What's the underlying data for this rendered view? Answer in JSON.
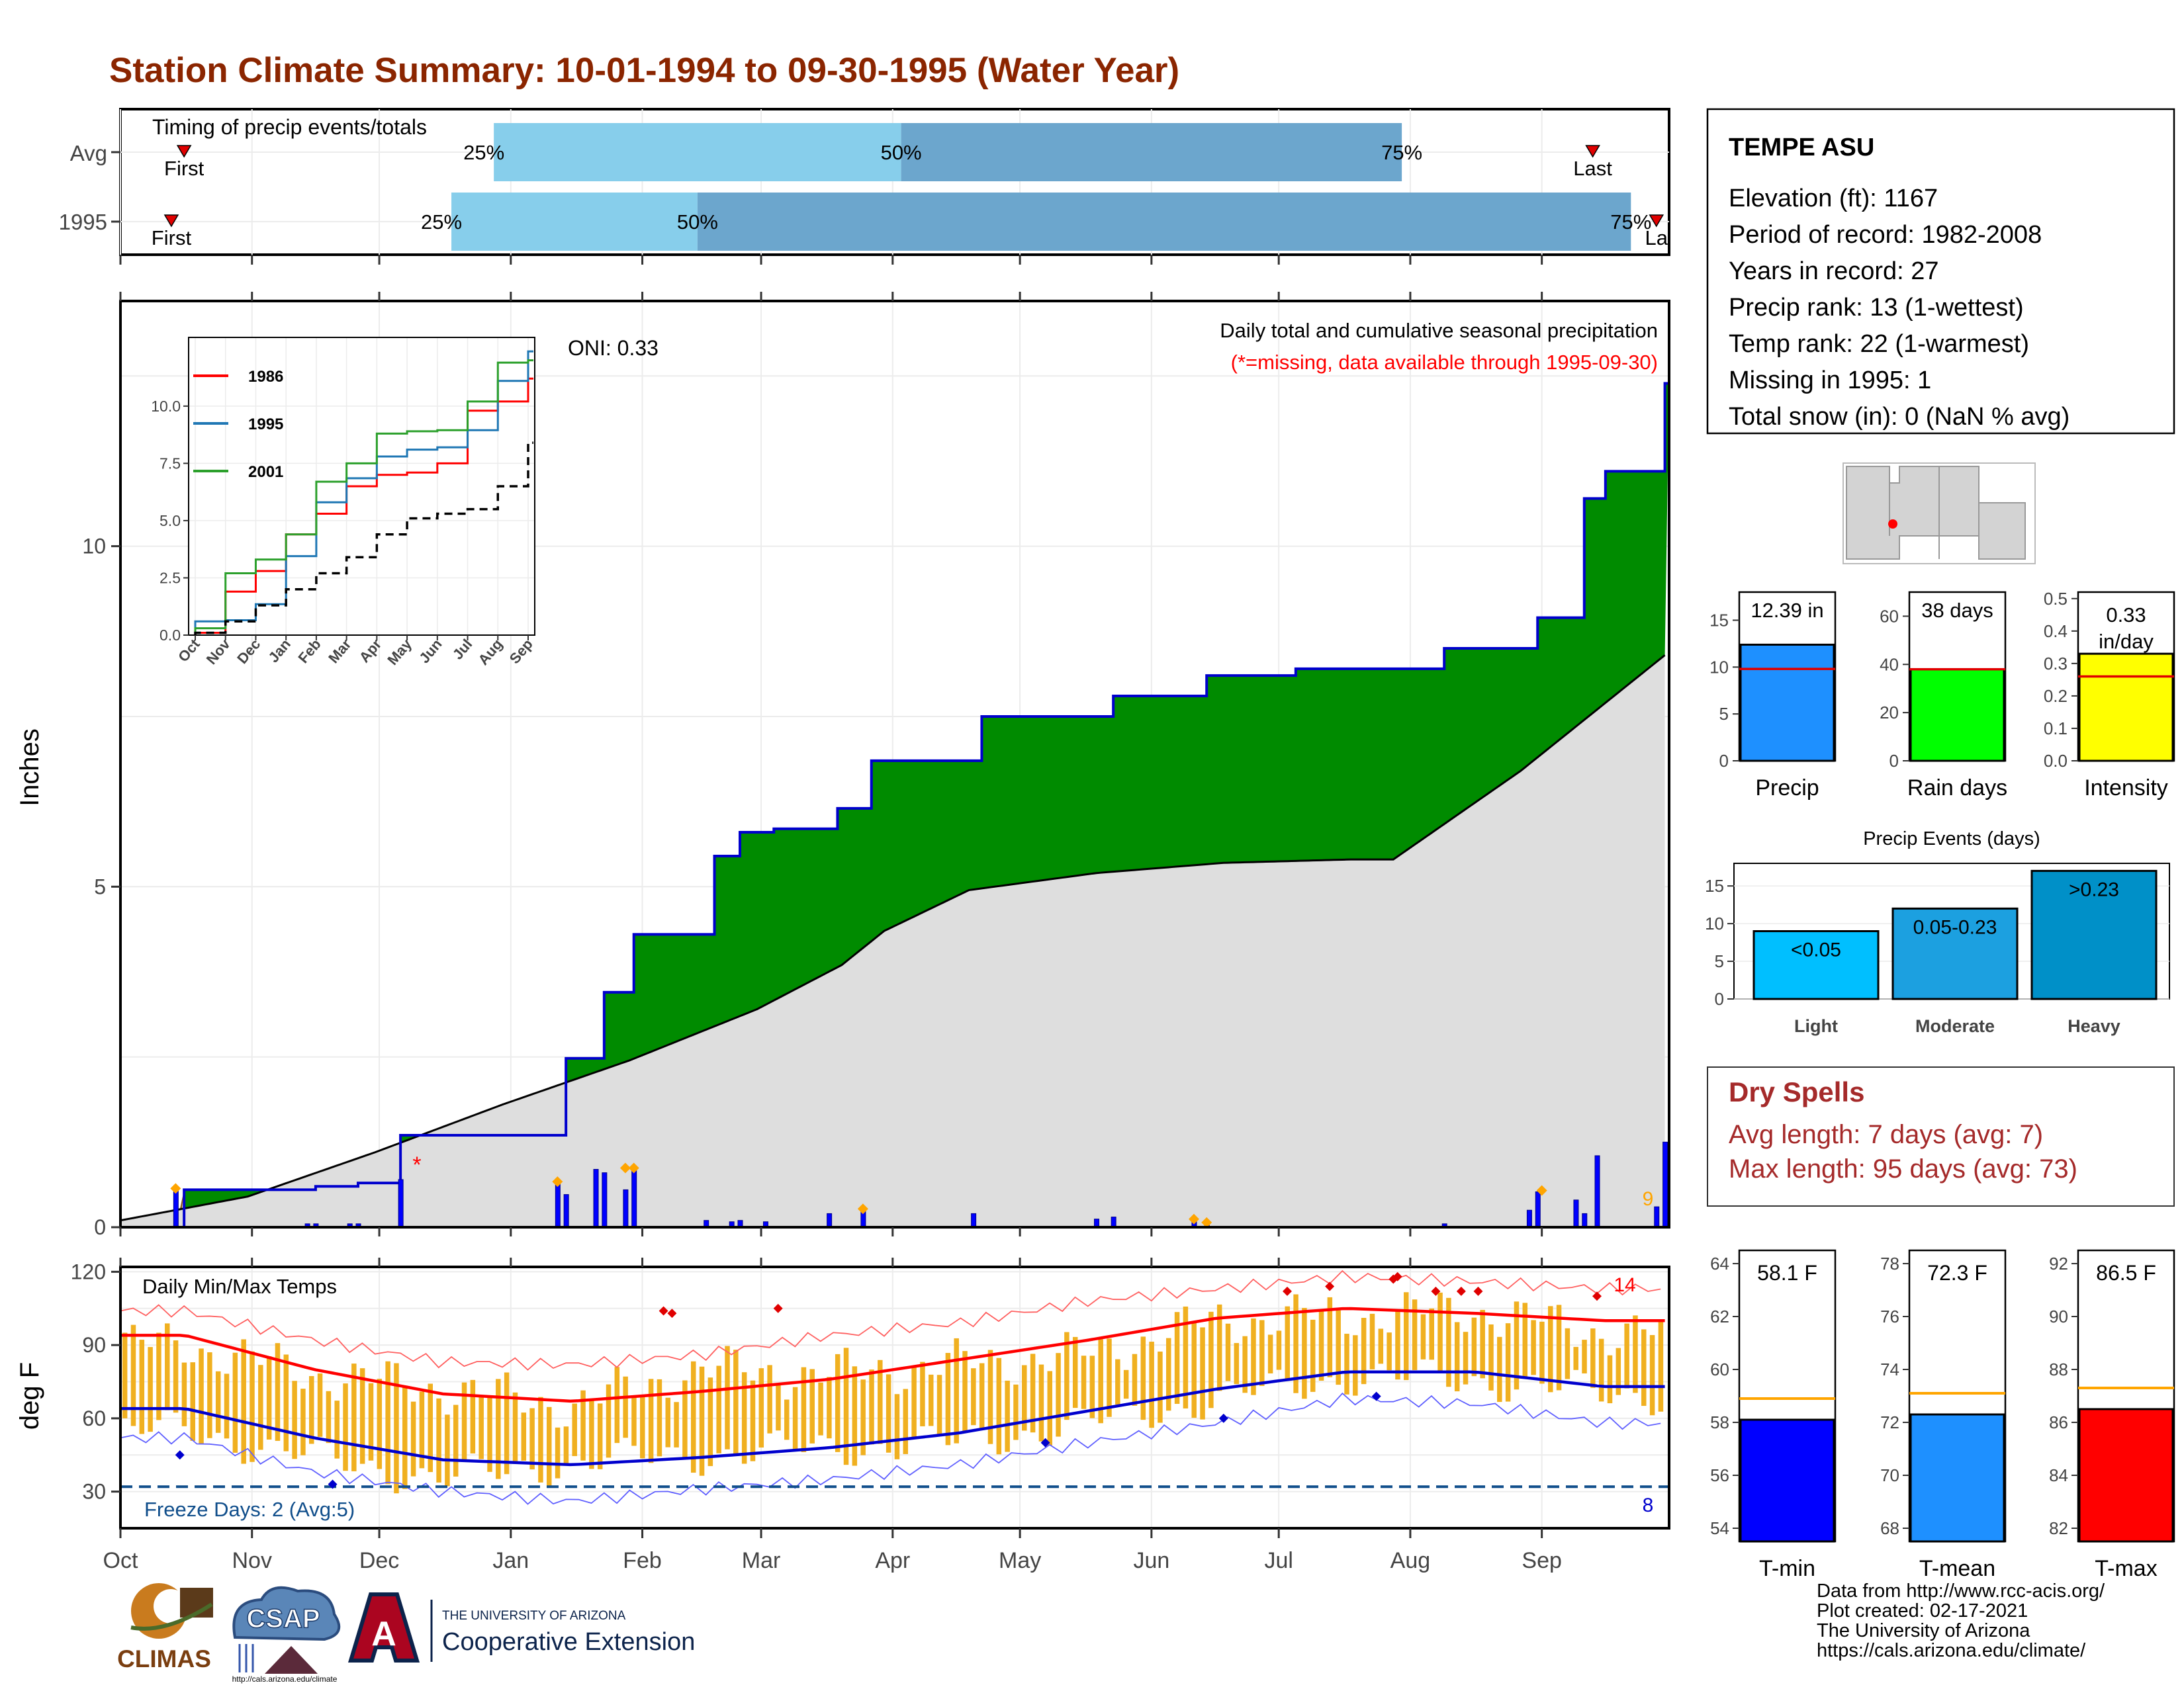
{
  "title": "Station Climate Summary: 10-01-1994 to 09-30-1995 (Water Year)",
  "colors": {
    "title": "#8B2500",
    "precip_green": "#008B00",
    "cum_line": "#0000CD",
    "avg_area": "#DEDEDE",
    "early_brown": "#8B5A14",
    "daily_bar": "#0000FF",
    "marker_orange": "#FFA500",
    "light_blue": "#87CEEB",
    "mid_blue": "#6CA6CD",
    "tmax_red": "#FF0000",
    "tmin_blue": "#0000CD",
    "temp_bar": "#F0B020",
    "dry_red": "#A52A2A"
  },
  "timing": {
    "subtitle": "Timing of precip events/totals",
    "rows": [
      {
        "label": "Avg",
        "first_label": "First",
        "last_label": "Last",
        "pct25": "25%",
        "pct50": "50%",
        "pct75": "75%",
        "first_day": 15,
        "last_day": 347,
        "q25": 88,
        "q50": 184,
        "q75": 302
      },
      {
        "label": "1995",
        "first_label": "First",
        "last_label": "La",
        "pct25": "25%",
        "pct50": "50%",
        "pct75": "75%",
        "first_day": 12,
        "last_day": 362,
        "q25": 78,
        "q50": 136,
        "q75": 356
      }
    ]
  },
  "precip_panel": {
    "ylabel": "Inches",
    "oni": "ONI: 0.33",
    "label1": "Daily total and cumulative seasonal precipitation",
    "label2": "(*=missing, data available through 1995-09-30)",
    "missing_mark": "*",
    "corner_count": "9",
    "yticks": [
      "0",
      "5",
      "10"
    ],
    "ylim": [
      0,
      13.6
    ]
  },
  "inset": {
    "yticks": [
      "0.0",
      "2.5",
      "5.0",
      "7.5",
      "10.0"
    ],
    "months": [
      "Oct",
      "Nov",
      "Dec",
      "Jan",
      "Feb",
      "Mar",
      "Apr",
      "May",
      "Jun",
      "Jul",
      "Aug",
      "Sep"
    ],
    "legend": [
      {
        "name": "1986",
        "color": "#FF0000"
      },
      {
        "name": "1995",
        "color": "#1F77B4"
      },
      {
        "name": "2001",
        "color": "#2CA02C"
      }
    ]
  },
  "temp_panel": {
    "ylabel": "deg F",
    "label": "Daily Min/Max Temps",
    "freeze": "Freeze Days: 2 (Avg:5)",
    "count_hot": "14",
    "count_cold": "8",
    "yticks": [
      "30",
      "60",
      "90",
      "120"
    ]
  },
  "months": [
    "Oct",
    "Nov",
    "Dec",
    "Jan",
    "Feb",
    "Mar",
    "Apr",
    "May",
    "Jun",
    "Jul",
    "Aug",
    "Sep"
  ],
  "station": {
    "name": "TEMPE ASU",
    "lines": [
      "Elevation (ft): 1167",
      "Period of record: 1982-2008",
      "Years in record: 27",
      "Precip rank: 13 (1-wettest)",
      "Temp rank: 22 (1-warmest)",
      "Missing in 1995: 1",
      "Total snow (in): 0 (NaN % avg)"
    ]
  },
  "mini_bars": [
    {
      "label": "Precip",
      "value_text": "12.39 in",
      "value": 12.39,
      "avg": 9.8,
      "ymax": 18,
      "ticks": [
        "0",
        "5",
        "10",
        "15"
      ],
      "tickvals": [
        0,
        5,
        10,
        15
      ],
      "color": "#1E90FF"
    },
    {
      "label": "Rain days",
      "value_text": "38 days",
      "value": 38,
      "avg": 38,
      "ymax": 70,
      "ticks": [
        "0",
        "20",
        "40",
        "60"
      ],
      "tickvals": [
        0,
        20,
        40,
        60
      ],
      "color": "#00FF00"
    },
    {
      "label": "Intensity",
      "value_text": "0.33 in/day",
      "value": 0.33,
      "avg": 0.26,
      "ymax": 0.52,
      "ticks": [
        "0.0",
        "0.1",
        "0.2",
        "0.3",
        "0.4",
        "0.5"
      ],
      "tickvals": [
        0,
        0.1,
        0.2,
        0.3,
        0.4,
        0.5
      ],
      "color": "#FFFF00"
    }
  ],
  "events": {
    "title": "Precip Events (days)",
    "ticks": [
      "0",
      "5",
      "10",
      "15"
    ],
    "bars": [
      {
        "category": "Light",
        "range": "<0.05",
        "value": 9
      },
      {
        "category": "Moderate",
        "range": "0.05-0.23",
        "value": 12
      },
      {
        "category": "Heavy",
        "range": ">0.23",
        "value": 17
      }
    ]
  },
  "dry": {
    "title": "Dry Spells",
    "avg_line": "Avg length: 7 days (avg: 7)",
    "max_line": "Max length: 95 days (avg: 73)"
  },
  "temp_bars": [
    {
      "label": "T-min",
      "value_text": "58.1 F",
      "value": 58.1,
      "avg": 58.9,
      "min": 53.5,
      "max": 64.5,
      "ticks": [
        "54",
        "56",
        "58",
        "60",
        "62",
        "64"
      ],
      "tickvals": [
        54,
        56,
        58,
        60,
        62,
        64
      ],
      "color": "#0000FF"
    },
    {
      "label": "T-mean",
      "value_text": "72.3 F",
      "value": 72.3,
      "avg": 73.1,
      "min": 67.5,
      "max": 78.5,
      "ticks": [
        "68",
        "70",
        "72",
        "74",
        "76",
        "78"
      ],
      "tickvals": [
        68,
        70,
        72,
        74,
        76,
        78
      ],
      "color": "#1E90FF"
    },
    {
      "label": "T-max",
      "value_text": "86.5 F",
      "value": 86.5,
      "avg": 87.3,
      "min": 81.5,
      "max": 92.5,
      "ticks": [
        "82",
        "84",
        "86",
        "88",
        "90",
        "92"
      ],
      "tickvals": [
        82,
        84,
        86,
        88,
        90,
        92
      ],
      "color": "#FF0000"
    }
  ],
  "logos": {
    "climas": "CLIMAS",
    "csap": "CSAP",
    "csap_url": "http://cals.arizona.edu/climate",
    "ua_letter": "A",
    "ua_small": "THE UNIVERSITY OF ARIZONA",
    "ua_big": "Cooperative Extension"
  },
  "credit": [
    "Data from http://www.rcc-acis.org/",
    "Plot created: 02-17-2021",
    "The University of Arizona",
    "https://cals.arizona.edu/climate/"
  ],
  "chart_data": [
    {
      "type": "area",
      "title": "Daily total and cumulative seasonal precipitation",
      "ylabel": "Inches",
      "ylim": [
        0,
        13.6
      ],
      "x_unit": "day of water year (0 = Oct 1)",
      "series": [
        {
          "name": "cumulative precip",
          "x": [
            0,
            13,
            15,
            44,
            46,
            54,
            56,
            64,
            66,
            103,
            105,
            112,
            114,
            119,
            121,
            138,
            140,
            144,
            146,
            152,
            154,
            167,
            169,
            175,
            177,
            201,
            203,
            230,
            234,
            253,
            256,
            275,
            277,
            310,
            312,
            332,
            334,
            343,
            345,
            348,
            350,
            362,
            364
          ],
          "y": [
            0,
            0,
            0.55,
            0.55,
            0.6,
            0.6,
            0.65,
            0.65,
            1.35,
            1.35,
            2.48,
            2.48,
            3.45,
            3.45,
            4.3,
            4.3,
            5.45,
            5.45,
            5.8,
            5.8,
            5.85,
            5.85,
            6.15,
            6.15,
            6.85,
            6.85,
            7.5,
            7.5,
            7.8,
            7.8,
            8.1,
            8.1,
            8.2,
            8.2,
            8.5,
            8.5,
            8.95,
            8.95,
            10.7,
            10.7,
            11.1,
            11.1,
            12.39
          ]
        },
        {
          "name": "average cumulative",
          "x": [
            0,
            30,
            60,
            90,
            120,
            150,
            170,
            180,
            200,
            230,
            260,
            290,
            300,
            330,
            364
          ],
          "y": [
            0.1,
            0.45,
            1.1,
            1.8,
            2.45,
            3.2,
            3.85,
            4.35,
            4.95,
            5.2,
            5.35,
            5.4,
            5.4,
            6.7,
            8.4
          ]
        },
        {
          "name": "daily precip",
          "x": [
            13,
            44,
            46,
            54,
            56,
            66,
            103,
            105,
            112,
            114,
            119,
            121,
            138,
            144,
            146,
            152,
            167,
            175,
            201,
            230,
            234,
            253,
            256,
            312,
            332,
            334,
            343,
            345,
            348,
            362,
            364
          ],
          "y": [
            0.55,
            0.05,
            0.05,
            0.05,
            0.05,
            0.7,
            0.65,
            0.48,
            0.85,
            0.8,
            0.55,
            0.85,
            0.1,
            0.08,
            0.1,
            0.08,
            0.2,
            0.25,
            0.2,
            0.12,
            0.15,
            0.1,
            0.06,
            0.05,
            0.25,
            0.52,
            0.4,
            0.2,
            1.05,
            0.3,
            1.25
          ]
        }
      ]
    },
    {
      "type": "line",
      "title": "",
      "categories": [
        "Oct",
        "Nov",
        "Dec",
        "Jan",
        "Feb",
        "Mar",
        "Apr",
        "May",
        "Jun",
        "Jul",
        "Aug",
        "Sep"
      ],
      "ylim": [
        0,
        13
      ],
      "series": [
        {
          "name": "1986",
          "values": [
            0.1,
            1.9,
            2.8,
            4.4,
            5.3,
            6.5,
            7.0,
            7.1,
            7.5,
            9.8,
            10.2,
            11.2
          ]
        },
        {
          "name": "1995",
          "values": [
            0.6,
            0.65,
            1.35,
            3.45,
            5.8,
            6.85,
            7.8,
            8.1,
            8.2,
            8.95,
            11.1,
            12.39
          ]
        },
        {
          "name": "2001",
          "values": [
            0.3,
            2.7,
            3.3,
            4.4,
            6.7,
            7.5,
            8.8,
            8.9,
            8.95,
            10.2,
            11.9,
            12.0
          ]
        },
        {
          "name": "average",
          "values": [
            0.1,
            0.6,
            1.3,
            2.0,
            2.7,
            3.4,
            4.4,
            5.1,
            5.3,
            5.5,
            6.5,
            8.4
          ]
        }
      ]
    },
    {
      "type": "line",
      "title": "Daily Min/Max Temps",
      "ylabel": "deg F",
      "ylim": [
        15,
        122
      ],
      "categories": [
        "Oct",
        "Nov",
        "Dec",
        "Jan",
        "Feb",
        "Mar",
        "Apr",
        "May",
        "Jun",
        "Jul",
        "Aug",
        "Sep"
      ],
      "series": [
        {
          "name": "avg max",
          "values": [
            94,
            80,
            70,
            67,
            71,
            76,
            84,
            92,
            101,
            105,
            103,
            100
          ]
        },
        {
          "name": "avg min",
          "values": [
            64,
            52,
            43,
            41,
            44,
            48,
            54,
            63,
            72,
            79,
            79,
            73
          ]
        },
        {
          "name": "record high",
          "values": [
            104,
            92,
            83,
            82,
            86,
            94,
            99,
            108,
            113,
            118,
            116,
            113
          ]
        },
        {
          "name": "record low",
          "values": [
            52,
            38,
            30,
            26,
            31,
            35,
            41,
            50,
            58,
            68,
            66,
            58
          ]
        },
        {
          "name": "observed max",
          "values": [
            90,
            78,
            72,
            65,
            80,
            78,
            82,
            86,
            100,
            102,
            104,
            95
          ]
        },
        {
          "name": "observed min",
          "values": [
            55,
            44,
            35,
            42,
            45,
            48,
            50,
            58,
            68,
            77,
            76,
            70
          ]
        }
      ],
      "freeze_line": 32
    }
  ]
}
